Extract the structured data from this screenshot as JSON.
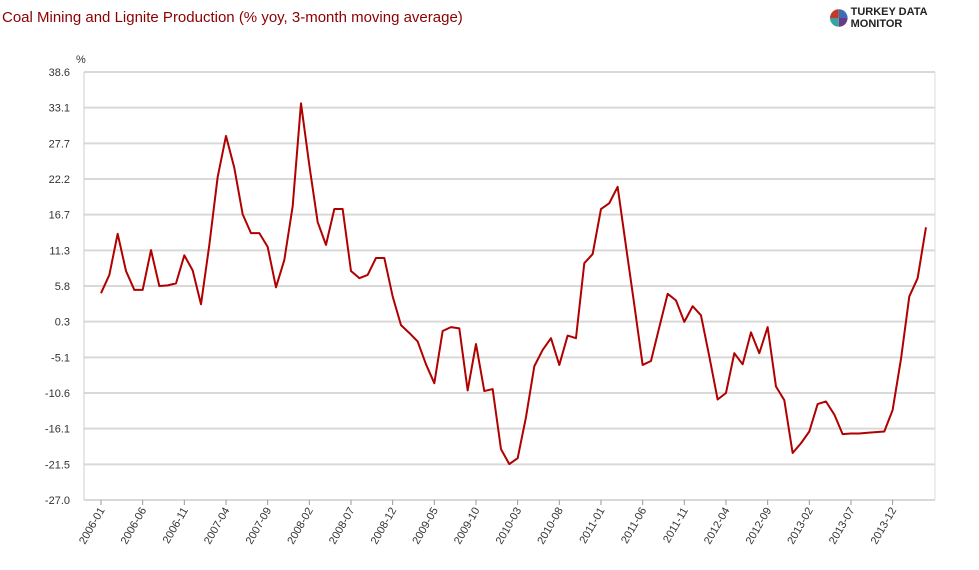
{
  "header": {
    "title": "Coal Mining and Lignite Production (% yoy, 3-month moving average)",
    "brand": "TURKEY DATA MONITOR"
  },
  "chart_data": {
    "type": "line",
    "title": "Coal Mining and Lignite Production (% yoy, 3-month moving average)",
    "ylabel": "%",
    "xlabel": "",
    "ylim": [
      -27.0,
      38.6
    ],
    "yticks": [
      "38.6",
      "33.1",
      "27.7",
      "22.2",
      "16.7",
      "11.3",
      "5.8",
      "0.3",
      "-5.1",
      "-10.6",
      "-16.1",
      "-21.5",
      "-27.0"
    ],
    "xticks": [
      "2006-01",
      "2006-06",
      "2006-11",
      "2007-04",
      "2007-09",
      "2008-02",
      "2008-07",
      "2008-12",
      "2009-05",
      "2009-10",
      "2010-03",
      "2010-08",
      "2011-01",
      "2011-06",
      "2011-11",
      "2012-04",
      "2012-09",
      "2013-02",
      "2013-07",
      "2013-12"
    ],
    "x_start": "2006-01",
    "x_end": "2014-04",
    "grid": true,
    "color": "#b00000",
    "series": [
      {
        "name": "Coal Mining and Lignite Production",
        "values": [
          4.7,
          7.5,
          13.8,
          8.1,
          5.2,
          5.2,
          11.3,
          5.8,
          5.9,
          6.2,
          10.5,
          8.2,
          3.0,
          12.1,
          22.5,
          28.8,
          23.9,
          16.8,
          13.9,
          13.9,
          11.8,
          5.6,
          9.8,
          18.0,
          33.8,
          24.3,
          15.6,
          12.1,
          17.6,
          17.6,
          8.1,
          7.0,
          7.5,
          10.1,
          10.1,
          4.2,
          -0.2,
          -1.4,
          -2.7,
          -6.2,
          -9.1,
          -1.1,
          -0.5,
          -0.7,
          -10.2,
          -3.1,
          -10.3,
          -10.0,
          -19.2,
          -21.5,
          -20.6,
          -14.3,
          -6.5,
          -4.0,
          -2.2,
          -6.3,
          -1.8,
          -2.2,
          9.3,
          10.7,
          17.6,
          18.5,
          21.0,
          11.9,
          2.9,
          -6.3,
          -5.7,
          -0.5,
          4.6,
          3.6,
          0.3,
          2.7,
          1.3,
          -5.0,
          -11.6,
          -10.6,
          -4.5,
          -6.2,
          -1.3,
          -4.5,
          -0.5,
          -9.6,
          -11.7,
          -19.8,
          -18.3,
          -16.5,
          -12.3,
          -11.9,
          -13.9,
          -16.9,
          -16.8,
          -16.8,
          -16.7,
          -16.6,
          -16.5,
          -13.2,
          -5.4,
          4.2,
          7.0,
          14.8
        ]
      }
    ]
  }
}
